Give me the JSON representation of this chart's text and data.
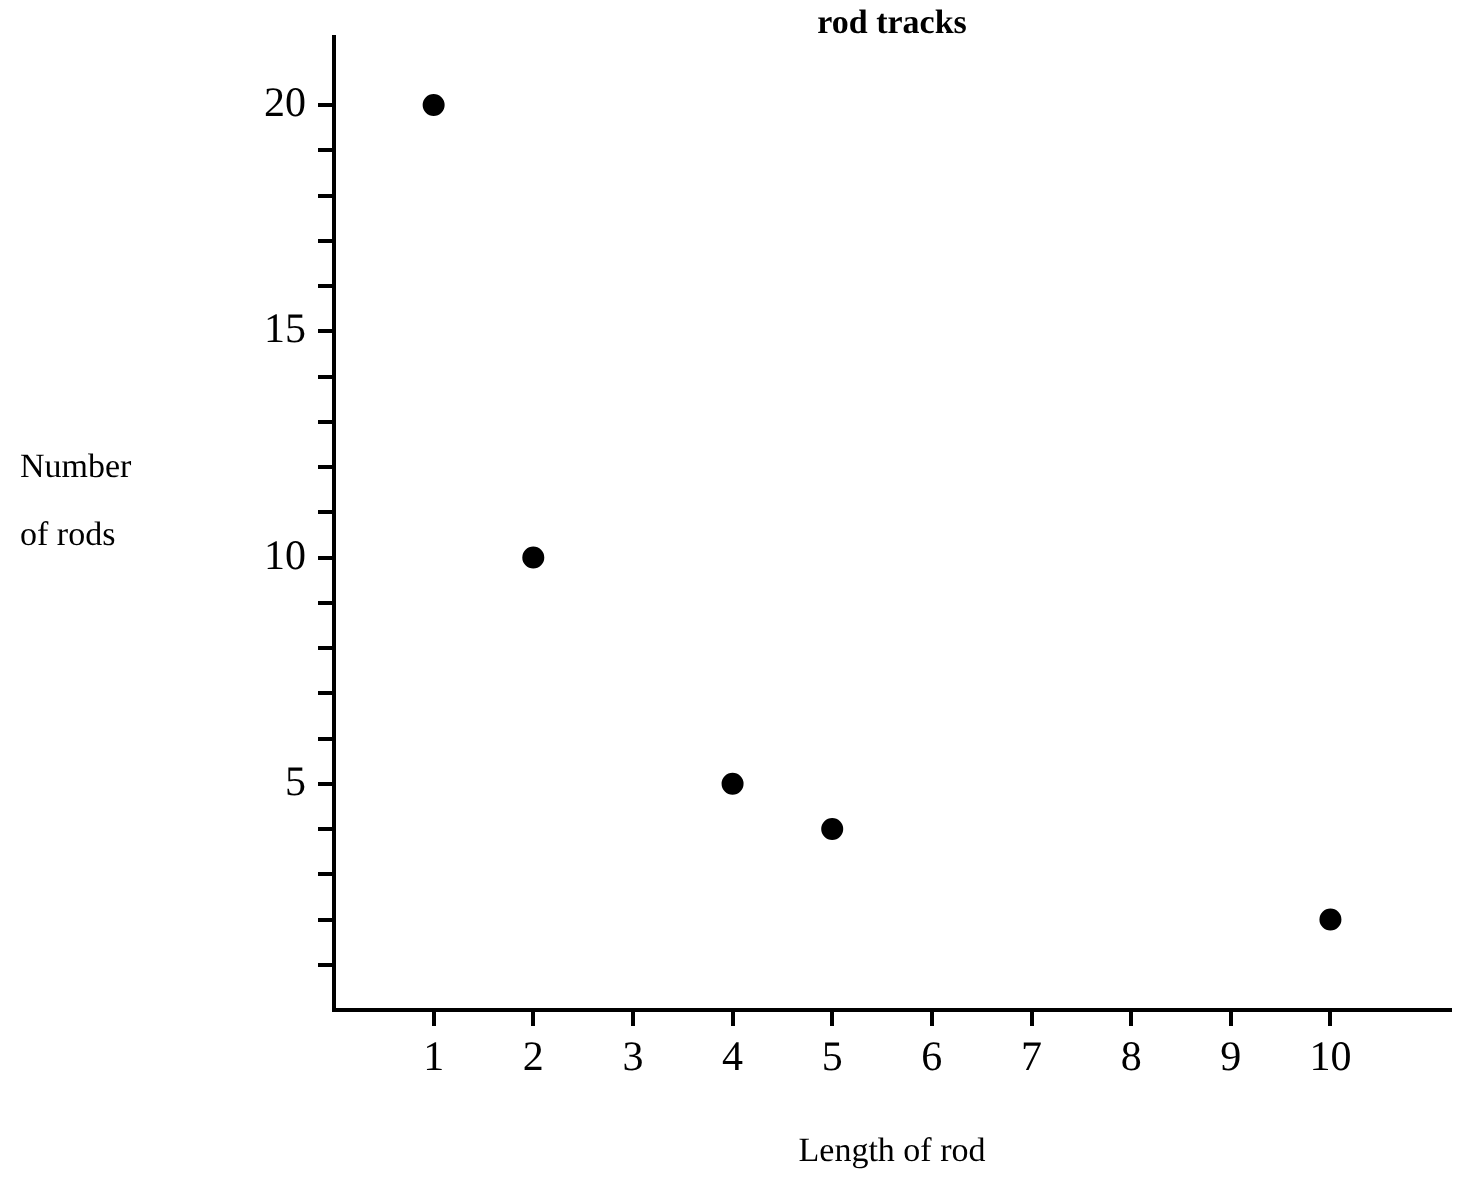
{
  "chart_data": {
    "type": "scatter",
    "title": "rod tracks",
    "xlabel": "Length of rod",
    "ylabel": "Number of rods",
    "x": [
      1,
      2,
      4,
      5,
      10
    ],
    "series": [
      {
        "color": "#000000",
        "values": [
          20,
          10,
          5,
          4,
          2
        ]
      }
    ],
    "marker": "circle",
    "xlim": [
      0,
      11.2
    ],
    "xticks": [
      1,
      2,
      3,
      4,
      5,
      6,
      7,
      8,
      9,
      10
    ],
    "ylim": [
      0,
      21.5
    ],
    "yticks": [
      {
        "value": 1,
        "label": null
      },
      {
        "value": 2,
        "label": null
      },
      {
        "value": 3,
        "label": null
      },
      {
        "value": 4,
        "label": null
      },
      5,
      {
        "value": 6,
        "label": null
      },
      {
        "value": 7,
        "label": null
      },
      {
        "value": 8,
        "label": null
      },
      {
        "value": 9,
        "label": null
      },
      10,
      {
        "value": 11,
        "label": null
      },
      {
        "value": 12,
        "label": null
      },
      {
        "value": 13,
        "label": null
      },
      {
        "value": 14,
        "label": null
      },
      15,
      {
        "value": 16,
        "label": null
      },
      {
        "value": 17,
        "label": null
      },
      {
        "value": 18,
        "label": null
      },
      {
        "value": 19,
        "label": null
      },
      20
    ]
  }
}
